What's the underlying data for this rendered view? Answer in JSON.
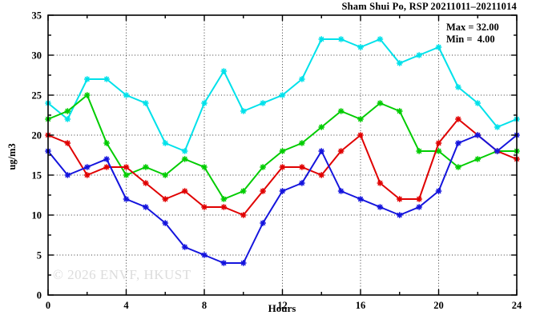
{
  "header": {
    "title": "Sham Shui Po, RSP 20211011–20211014"
  },
  "legend": {
    "max_label": "Max = 32.00",
    "min_label": "Min =  4.00"
  },
  "watermark_text": "© 2026 ENVF, HKUST",
  "colors": {
    "cyan": "#00e1ea",
    "green": "#00cc00",
    "red": "#e00000",
    "blue": "#1414dd",
    "grid": "#3a3a3a",
    "watermark": "#dcdcdc"
  },
  "chart_data": {
    "type": "line",
    "title": "Sham Shui Po, RSP 20211011–20211014",
    "xlabel": "Hours",
    "ylabel": "ug/m3",
    "xlim": [
      0,
      24
    ],
    "ylim": [
      0,
      35
    ],
    "x_tick_labels": [
      0,
      4,
      8,
      12,
      16,
      20,
      24
    ],
    "x_tick_minor_step": 2,
    "y_tick_labels": [
      0,
      5,
      10,
      15,
      20,
      25,
      30,
      35
    ],
    "y_tick_minor_step": 2.5,
    "grid_x": [
      4,
      8,
      12,
      16,
      20
    ],
    "grid_y": [
      5,
      10,
      15,
      20,
      25,
      30
    ],
    "grid_on": true,
    "legend_position": "top-right-inside",
    "marker": "star",
    "x": [
      0,
      1,
      2,
      3,
      4,
      5,
      6,
      7,
      8,
      9,
      10,
      11,
      12,
      13,
      14,
      15,
      16,
      17,
      18,
      19,
      20,
      21,
      22,
      23,
      24
    ],
    "series": [
      {
        "name": "series-cyan",
        "color": "#00e1ea",
        "values": [
          24,
          22,
          27,
          27,
          25,
          24,
          19,
          18,
          24,
          28,
          23,
          24,
          25,
          27,
          32,
          32,
          31,
          32,
          29,
          30,
          31,
          26,
          24,
          21,
          22
        ]
      },
      {
        "name": "series-green",
        "color": "#00cc00",
        "values": [
          22,
          23,
          25,
          19,
          15,
          16,
          15,
          17,
          16,
          12,
          13,
          16,
          18,
          19,
          21,
          23,
          22,
          24,
          23,
          18,
          18,
          16,
          17,
          18,
          18
        ]
      },
      {
        "name": "series-red",
        "color": "#e00000",
        "values": [
          20,
          19,
          15,
          16,
          16,
          14,
          12,
          13,
          11,
          11,
          10,
          13,
          16,
          16,
          15,
          18,
          20,
          14,
          12,
          12,
          19,
          22,
          20,
          18,
          17
        ]
      },
      {
        "name": "series-blue",
        "color": "#1414dd",
        "values": [
          18,
          15,
          16,
          17,
          12,
          11,
          9,
          6,
          5,
          4,
          4,
          9,
          13,
          14,
          18,
          13,
          12,
          11,
          10,
          11,
          13,
          19,
          20,
          18,
          20
        ]
      }
    ],
    "stats": {
      "max": 32.0,
      "min": 4.0
    }
  }
}
